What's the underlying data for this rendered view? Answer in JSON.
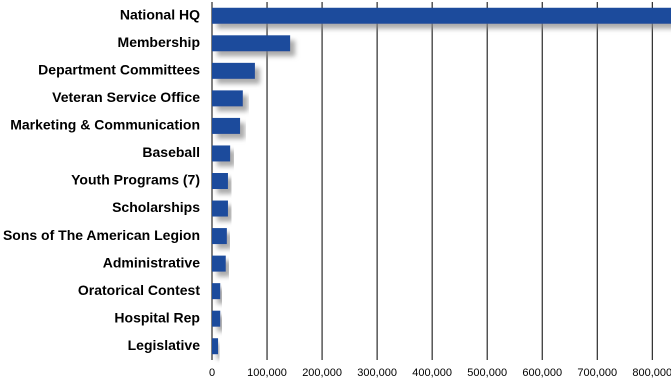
{
  "chart_data": {
    "type": "hbar",
    "categories": [
      "National HQ",
      "Membership",
      "Department Committees",
      "Veteran Service Office",
      "Marketing & Communication",
      "Baseball",
      "Youth Programs (7)",
      "Scholarships",
      "Sons of The American Legion",
      "Administrative",
      "Oratorical Contest",
      "Hospital Rep",
      "Legislative"
    ],
    "values": [
      870000,
      142000,
      78000,
      56000,
      51000,
      33000,
      29000,
      29000,
      27000,
      25000,
      15000,
      15000,
      11000
    ],
    "color": "#1c4c9c",
    "xlim": [
      0,
      834000
    ],
    "xticks": [
      0,
      {
        "value": 100000,
        "label": "100,000"
      },
      {
        "value": 200000,
        "label": "200,000"
      },
      {
        "value": 300000,
        "label": "300,000"
      },
      {
        "value": 400000,
        "label": "400,000"
      },
      {
        "value": 500000,
        "label": "500,000"
      },
      {
        "value": 600000,
        "label": "600,000"
      },
      {
        "value": 700000,
        "label": "700,000"
      },
      {
        "value": 800000,
        "label": "800,000"
      }
    ],
    "grid": true
  }
}
